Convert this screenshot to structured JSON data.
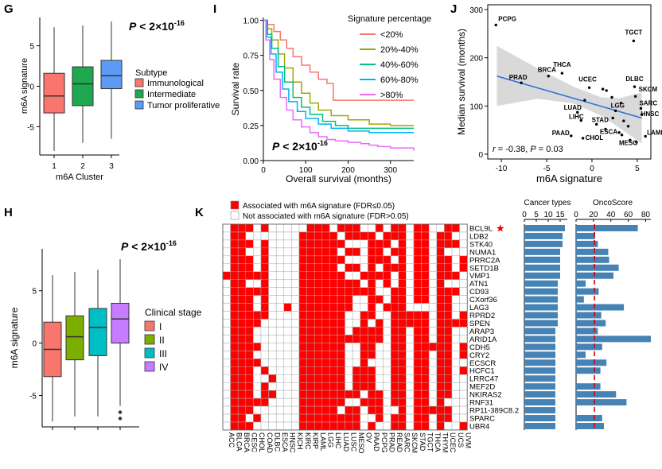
{
  "panels": {
    "G": "G",
    "I": "I",
    "J": "J",
    "H": "H",
    "K": "K"
  },
  "chart_data": [
    {
      "id": "G",
      "type": "box",
      "xlabel": "m6A Cluster",
      "ylabel": "m6A signature",
      "annotation": {
        "prefix": "P < 2×10",
        "exp": "-16"
      },
      "yticks": [
        "5",
        "0",
        "-5"
      ],
      "ylim": [
        -8.5,
        8.5
      ],
      "legend_title": "Subtype",
      "groups": [
        {
          "cat": "1",
          "label": "Immunological",
          "color": "#f8766d",
          "min": -8,
          "q1": -3.3,
          "med": -1.2,
          "q3": 1.6,
          "max": 7.3
        },
        {
          "cat": "2",
          "label": "Intermediate",
          "color": "#1fa84f",
          "min": -7,
          "q1": -2.4,
          "med": 0.3,
          "q3": 2.4,
          "max": 7.5
        },
        {
          "cat": "3",
          "label": "Tumor proliferative",
          "color": "#5b9bf3",
          "min": -6.5,
          "q1": -0.3,
          "med": 1.3,
          "q3": 3.2,
          "max": 8
        }
      ]
    },
    {
      "id": "I",
      "type": "line",
      "xlabel": "Overall survival (months)",
      "ylabel": "Survival rate",
      "xticks": [
        "0",
        "100",
        "200",
        "300"
      ],
      "yticks": [
        "1.00",
        "0.75",
        "0.50",
        "0.25",
        "0.00"
      ],
      "xlim": [
        0,
        355
      ],
      "ylim": [
        0,
        1.02
      ],
      "legend_title": "Signature percentage",
      "annotation": {
        "prefix": "P < 2×10",
        "exp": "-16"
      },
      "series": [
        {
          "name": "<20%",
          "color": "#f8766d",
          "x": [
            0,
            10,
            25,
            40,
            55,
            70,
            90,
            110,
            130,
            150,
            165,
            180,
            355
          ],
          "y": [
            1,
            0.97,
            0.92,
            0.86,
            0.8,
            0.74,
            0.68,
            0.63,
            0.58,
            0.55,
            0.43,
            0.43,
            0.43
          ]
        },
        {
          "name": "20%-40%",
          "color": "#a3a500",
          "x": [
            0,
            10,
            20,
            35,
            50,
            70,
            90,
            110,
            130,
            160,
            200,
            250,
            300,
            355
          ],
          "y": [
            1,
            0.94,
            0.86,
            0.76,
            0.66,
            0.56,
            0.48,
            0.41,
            0.36,
            0.32,
            0.29,
            0.26,
            0.25,
            0.25
          ]
        },
        {
          "name": "40%-60%",
          "color": "#00bf7d",
          "x": [
            0,
            10,
            20,
            35,
            50,
            70,
            90,
            110,
            140,
            170,
            200,
            250,
            300,
            355
          ],
          "y": [
            1,
            0.9,
            0.8,
            0.67,
            0.56,
            0.45,
            0.38,
            0.33,
            0.28,
            0.25,
            0.23,
            0.23,
            0.23,
            0.23
          ]
        },
        {
          "name": "60%-80%",
          "color": "#00b0f6",
          "x": [
            0,
            8,
            18,
            30,
            45,
            60,
            80,
            100,
            130,
            160,
            200,
            250,
            300,
            355
          ],
          "y": [
            1,
            0.88,
            0.76,
            0.63,
            0.51,
            0.42,
            0.35,
            0.3,
            0.26,
            0.23,
            0.21,
            0.2,
            0.2,
            0.2
          ]
        },
        {
          "name": ">80%",
          "color": "#e76bf3",
          "x": [
            0,
            6,
            15,
            25,
            40,
            55,
            70,
            90,
            110,
            130,
            150,
            170,
            200,
            230,
            250,
            270,
            300,
            355
          ],
          "y": [
            1,
            0.86,
            0.72,
            0.58,
            0.45,
            0.36,
            0.29,
            0.24,
            0.2,
            0.17,
            0.15,
            0.14,
            0.13,
            0.12,
            0.11,
            0.1,
            0.09,
            0.07
          ]
        }
      ]
    },
    {
      "id": "J",
      "type": "scatter",
      "xlabel": "m6A signature",
      "ylabel": "Median survival (months)",
      "xticks": [
        "-10",
        "-5",
        "0",
        "5"
      ],
      "yticks": [
        "300",
        "200",
        "100",
        "0"
      ],
      "xlim": [
        -11.5,
        6.5
      ],
      "ylim": [
        -10,
        310
      ],
      "annotation": {
        "r_label": "r",
        "r": "= -0.38, ",
        "p_label": "P",
        "p": "= 0.03"
      },
      "fit": {
        "x0": -10.5,
        "y0": 162,
        "x1": 5.5,
        "y1": 75
      },
      "band_upper": [
        [
          -10.5,
          225
        ],
        [
          -6,
          178
        ],
        [
          -2,
          140
        ],
        [
          1,
          118
        ],
        [
          3,
          116
        ],
        [
          5.5,
          128
        ]
      ],
      "band_lower": [
        [
          -10.5,
          100
        ],
        [
          -6,
          115
        ],
        [
          -2,
          105
        ],
        [
          1,
          80
        ],
        [
          3,
          55
        ],
        [
          5.5,
          22
        ]
      ],
      "points": [
        {
          "label": "PCPG",
          "x": -10.6,
          "y": 268
        },
        {
          "label": "TGCT",
          "x": 4.6,
          "y": 235
        },
        {
          "label": "BRCA",
          "x": -4.8,
          "y": 162
        },
        {
          "label": "THCA",
          "x": -3.3,
          "y": 168
        },
        {
          "label": "PRAD",
          "x": -7.8,
          "y": 148
        },
        {
          "label": "UCEC",
          "x": -0.3,
          "y": 138
        },
        {
          "label": "DLBC",
          "x": 4.7,
          "y": 140
        },
        {
          "label": "SKCM",
          "x": 4.8,
          "y": 120
        },
        {
          "label": "SARC",
          "x": 5.4,
          "y": 95
        },
        {
          "label": "LGG",
          "x": 2.6,
          "y": 90
        },
        {
          "label": "HNSC",
          "x": 5.5,
          "y": 82
        },
        {
          "label": "LUAD",
          "x": -1.6,
          "y": 87
        },
        {
          "label": "STAD",
          "x": 0.5,
          "y": 62
        },
        {
          "label": "LIHC",
          "x": -1.2,
          "y": 70
        },
        {
          "label": "ESCA",
          "x": 3.0,
          "y": 45
        },
        {
          "label": "PAAD",
          "x": -2.3,
          "y": 38
        },
        {
          "label": "CHOL",
          "x": -1.0,
          "y": 33
        },
        {
          "label": "MESO",
          "x": 4.2,
          "y": 29
        },
        {
          "label": "LAML",
          "x": 5.9,
          "y": 37
        },
        {
          "label": "",
          "x": 1.2,
          "y": 135
        },
        {
          "label": "",
          "x": 1.6,
          "y": 132
        },
        {
          "label": "",
          "x": 2.2,
          "y": 118
        },
        {
          "label": "",
          "x": 3.2,
          "y": 106
        },
        {
          "label": "",
          "x": -0.8,
          "y": 112
        },
        {
          "label": "",
          "x": 2.3,
          "y": 75
        },
        {
          "label": "",
          "x": 3.5,
          "y": 69
        },
        {
          "label": "",
          "x": 4.0,
          "y": 58
        },
        {
          "label": "",
          "x": 1.5,
          "y": 52
        },
        {
          "label": "",
          "x": 3.3,
          "y": 40
        },
        {
          "label": "",
          "x": 4.9,
          "y": 25
        }
      ]
    },
    {
      "id": "H",
      "type": "box",
      "xlabel": "",
      "ylabel": "m6A signature",
      "annotation": {
        "prefix": "P < 2×10",
        "exp": "-16"
      },
      "yticks": [
        "5",
        "0",
        "-5"
      ],
      "ylim": [
        -8,
        9
      ],
      "legend_title": "Clinical stage",
      "groups": [
        {
          "cat": "I",
          "label": "I",
          "color": "#f8766d",
          "min": -7.5,
          "q1": -3.2,
          "med": -0.6,
          "q3": 2.0,
          "max": 6.5
        },
        {
          "cat": "II",
          "label": "II",
          "color": "#7cae00",
          "min": -7,
          "q1": -1.6,
          "med": 0.6,
          "q3": 2.6,
          "max": 6.8
        },
        {
          "cat": "III",
          "label": "III",
          "color": "#00bfc4",
          "min": -7,
          "q1": -1.2,
          "med": 1.5,
          "q3": 3.3,
          "max": 7
        },
        {
          "cat": "IV",
          "label": "IV",
          "color": "#c77cff",
          "min": -6,
          "q1": 0,
          "med": 2.3,
          "q3": 3.8,
          "max": 8
        },
        {
          "outliers": [
            -6.6,
            -7.2
          ]
        }
      ]
    },
    {
      "id": "K",
      "type": "heatmap",
      "legend": {
        "assoc": "Associated with m6A signature (FDR≤0.05)",
        "notassoc": "Not associated with m6A signature (FDR>0.05)"
      },
      "cancer_types_title": "Cancer types",
      "oncoscore_title": "OncoScore",
      "ct_ticks": [
        "0",
        "5",
        "10",
        "15"
      ],
      "ct_max": 18,
      "os_ticks": [
        "0",
        "20",
        "40",
        "60",
        "80"
      ],
      "os_max": 86,
      "os_threshold": 21.09,
      "star": "★",
      "columns": [
        "ACC",
        "BLCA",
        "BRCA",
        "CESC",
        "CHOL",
        "COAD",
        "DLBC",
        "ESCA",
        "HNSC",
        "KICH",
        "KIRC",
        "KIRP",
        "LAML",
        "LGG",
        "LIHC",
        "LUAD",
        "LUSC",
        "MESO",
        "OV",
        "PAAD",
        "PCPG",
        "PRAD",
        "READ",
        "SARC",
        "SKCM",
        "STAD",
        "TGCT",
        "THCA",
        "THYM",
        "UCEC",
        "UCS",
        "UVM"
      ],
      "rows": [
        {
          "gene": "BCL9L",
          "ct": 17,
          "os": 71,
          "bits": "01110100000111011100101101100110"
        },
        {
          "gene": "LDB2",
          "ct": 16,
          "os": 22,
          "bits": "01100000001111101111011101101100"
        },
        {
          "gene": "STK40",
          "ct": 16,
          "os": 25,
          "bits": "01110100001111110001110101101110"
        },
        {
          "gene": "NUMA1",
          "ct": 15,
          "os": 37,
          "bits": "01100100001111101101101101101000"
        },
        {
          "gene": "PRRC2A",
          "ct": 15,
          "os": 38,
          "bits": "01110100001111110001110101101101"
        },
        {
          "gene": "SETD1B",
          "ct": 15,
          "os": 49,
          "bits": "01110100001111101101011101101101"
        },
        {
          "gene": "VMP1",
          "ct": 15,
          "os": 43,
          "bits": "11111100001111110011110101101110"
        },
        {
          "gene": "ATN1",
          "ct": 14,
          "os": 11,
          "bits": "01100100001111111101010101101000"
        },
        {
          "gene": "CD93",
          "ct": 14,
          "os": 26,
          "bits": "01111100001111111111001101101110"
        },
        {
          "gene": "CXorf36",
          "ct": 14,
          "os": 9,
          "bits": "01110100001111111001101101101100"
        },
        {
          "gene": "LAG3",
          "ct": 14,
          "os": 55,
          "bits": "01110100101111111001011100001100"
        },
        {
          "gene": "RPRD2",
          "ct": 14,
          "os": 29,
          "bits": "01111100001111110011001111101101"
        },
        {
          "gene": "SPEN",
          "ct": 14,
          "os": 34,
          "bits": "01111000001111110010101111101111"
        },
        {
          "gene": "ARAP3",
          "ct": 13,
          "os": 25,
          "bits": "01110000001111110111101101101100"
        },
        {
          "gene": "ARID1A",
          "ct": 13,
          "os": 86,
          "bits": "01110000001111111111101101101100"
        },
        {
          "gene": "CDH5",
          "ct": 13,
          "os": 30,
          "bits": "01111000001111110011001101111101"
        },
        {
          "gene": "CRY2",
          "ct": 13,
          "os": 11,
          "bits": "01110000001111110011001101101101"
        },
        {
          "gene": "ECSCR",
          "ct": 13,
          "os": 35,
          "bits": "01111000001111110010001101101100"
        },
        {
          "gene": "HCFC1",
          "ct": 13,
          "os": 28,
          "bits": "01110100001111110111001101101101"
        },
        {
          "gene": "LRRC47",
          "ct": 13,
          "os": 0,
          "bits": "01110010001111110111001101101100"
        },
        {
          "gene": "MEF2D",
          "ct": 13,
          "os": 28,
          "bits": "01110100001111110111001101101100"
        },
        {
          "gene": "NKIRAS2",
          "ct": 13,
          "os": 46,
          "bits": "01110110001111111101101101101100"
        },
        {
          "gene": "RNF31",
          "ct": 13,
          "os": 58,
          "bits": "01111100001111110011101101101000"
        },
        {
          "gene": "RP11-389C8.2",
          "ct": 13,
          "os": 0,
          "bits": "01110000001111101101100101111100"
        },
        {
          "gene": "SPARC",
          "ct": 13,
          "os": 30,
          "bits": "01101000001111111100101101101100"
        },
        {
          "gene": "UBR4",
          "ct": 13,
          "os": 32,
          "bits": "01110000001111111101001101101001"
        }
      ]
    }
  ]
}
